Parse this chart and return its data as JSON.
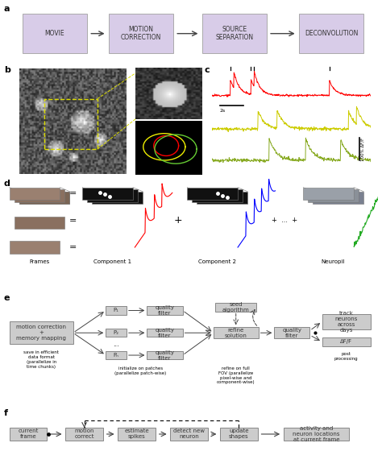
{
  "fig_width": 4.74,
  "fig_height": 5.91,
  "bg_color": "#ffffff",
  "panel_a": {
    "label": "a",
    "boxes": [
      "MOVIE",
      "MOTION\nCORRECTION",
      "SOURCE\nSEPARATION",
      "DECONVOLUTION"
    ],
    "box_color": "#d8cce8",
    "box_edge": "#aaaaaa",
    "text_color": "#333333",
    "fontsize": 5.5
  },
  "panel_e": {
    "label": "e",
    "left_box": "motion correction\n+\nmemory mapping",
    "left_box_note": "save in efficient\ndata format\n(parallelize in\ntime chunks)",
    "p_labels": [
      "P₁",
      "P₂",
      "Pₙ"
    ],
    "dots_label": "...",
    "qf_label": "quality\nfilter",
    "seed_label": "seed\nalgorithm",
    "refine_label": "refine\nsolution",
    "qf2_label": "quality\nfilter",
    "right_box1": "track\nneurons\nacross\ndays",
    "right_box2": "ΔF/F",
    "right_note": "post\nprocessing",
    "middle_note": "refine on full\nFOV (parallelize\npixel-wise and\ncomponent-wise)",
    "patch_note": "initialize on patches\n(parallelize patch-wise)",
    "box_color": "#cccccc",
    "box_edge": "#888888",
    "fontsize": 5.0
  },
  "panel_f": {
    "label": "f",
    "boxes": [
      "current\nframe",
      "motion\ncorrect",
      "estimate\nspikes",
      "detect new\nneuron",
      "update\nshapes",
      "activity and\nneuron locations\nat current frame"
    ],
    "box_color": "#cccccc",
    "last_box_color": "#cccccc",
    "box_edge": "#888888",
    "fontsize": 5.0
  }
}
